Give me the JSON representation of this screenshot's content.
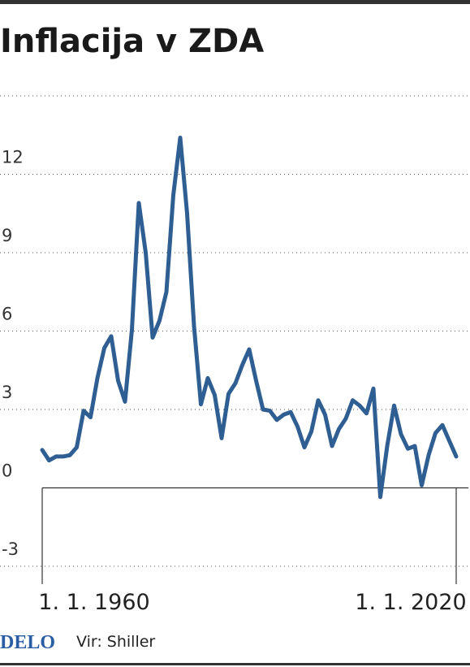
{
  "chart_data": {
    "type": "line",
    "title": "Inflacija v ZDA",
    "x": [
      1960,
      1961,
      1962,
      1963,
      1964,
      1965,
      1966,
      1967,
      1968,
      1969,
      1970,
      1971,
      1972,
      1973,
      1974,
      1975,
      1976,
      1977,
      1978,
      1979,
      1980,
      1981,
      1982,
      1983,
      1984,
      1985,
      1986,
      1987,
      1988,
      1989,
      1990,
      1991,
      1992,
      1993,
      1994,
      1995,
      1996,
      1997,
      1998,
      1999,
      2000,
      2001,
      2002,
      2003,
      2004,
      2005,
      2006,
      2007,
      2008,
      2009,
      2010,
      2011,
      2012,
      2013,
      2014,
      2015,
      2016,
      2017,
      2018,
      2019,
      2020
    ],
    "series": [
      {
        "name": "Inflacija",
        "color": "#2f5e92",
        "values": [
          1.45,
          1.05,
          1.2,
          1.2,
          1.25,
          1.55,
          2.95,
          2.7,
          4.2,
          5.35,
          5.8,
          4.1,
          3.3,
          6.05,
          10.9,
          9.0,
          5.75,
          6.4,
          7.5,
          11.2,
          13.4,
          10.5,
          6.2,
          3.2,
          4.2,
          3.55,
          1.9,
          3.6,
          4.0,
          4.7,
          5.3,
          4.1,
          3.0,
          2.95,
          2.6,
          2.8,
          2.9,
          2.35,
          1.55,
          2.15,
          3.35,
          2.8,
          1.6,
          2.25,
          2.65,
          3.35,
          3.15,
          2.85,
          3.8,
          -0.35,
          1.6,
          3.15,
          2.05,
          1.5,
          1.6,
          0.1,
          1.25,
          2.1,
          2.4,
          1.8,
          1.2
        ]
      }
    ],
    "xlim": [
      1960,
      2020
    ],
    "xticks": [
      {
        "value": 1960,
        "label": "1. 1. 1960"
      },
      {
        "value": 2020,
        "label": "1. 1. 2020"
      }
    ],
    "ylim": [
      -3,
      15
    ],
    "yticks": [
      -3,
      0,
      3,
      6,
      9,
      12
    ],
    "grid": true,
    "brand": "DELO",
    "source": "Vir: Shiller"
  }
}
